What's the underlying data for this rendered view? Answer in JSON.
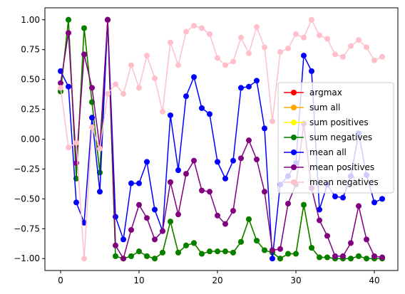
{
  "chart_data": {
    "type": "line",
    "title": "",
    "xlabel": "",
    "ylabel": "",
    "xlim": [
      -2,
      43
    ],
    "ylim": [
      -1.1,
      1.1
    ],
    "xticks": [
      0,
      10,
      20,
      30,
      40
    ],
    "yticks": [
      -1.0,
      -0.75,
      -0.5,
      -0.25,
      0.0,
      0.25,
      0.5,
      0.75,
      1.0
    ],
    "xtick_labels": [
      "0",
      "10",
      "20",
      "30",
      "40"
    ],
    "ytick_labels": [
      "−1.00",
      "−0.75",
      "−0.50",
      "−0.25",
      "0.00",
      "0.25",
      "0.50",
      "0.75",
      "1.00"
    ],
    "grid": false,
    "legend_position": "center-right",
    "x": [
      0,
      1,
      2,
      3,
      4,
      5,
      6,
      7,
      8,
      9,
      10,
      11,
      12,
      13,
      14,
      15,
      16,
      17,
      18,
      19,
      20,
      21,
      22,
      23,
      24,
      25,
      26,
      27,
      28,
      29,
      30,
      31,
      32,
      33,
      34,
      35,
      36,
      37,
      38,
      39,
      40,
      41
    ],
    "series": [
      {
        "name": "argmax",
        "color": "#ff0000",
        "values": [
          0.4,
          1.0,
          -0.33,
          0.93,
          0.31,
          -0.28,
          1.0,
          -0.98,
          -1.0,
          -0.98,
          -0.94,
          -0.98,
          -1.0,
          -0.95,
          -0.69,
          -0.95,
          -0.89,
          -0.87,
          -0.96,
          -0.94,
          -0.94,
          -0.94,
          -0.95,
          -0.86,
          -0.67,
          -0.85,
          -0.93,
          -0.95,
          -1.0,
          -0.96,
          -0.96,
          -0.55,
          -0.91,
          -0.99,
          -0.99,
          -1.0,
          -1.0,
          -1.0,
          -0.98,
          -1.0,
          -1.0,
          -1.0
        ]
      },
      {
        "name": "sum all",
        "color": "#ffa500",
        "values": [
          0.4,
          1.0,
          -0.33,
          0.93,
          0.31,
          -0.28,
          1.0,
          -0.98,
          -1.0,
          -0.98,
          -0.94,
          -0.98,
          -1.0,
          -0.95,
          -0.69,
          -0.95,
          -0.89,
          -0.87,
          -0.96,
          -0.94,
          -0.94,
          -0.94,
          -0.95,
          -0.86,
          -0.67,
          -0.85,
          -0.93,
          -0.95,
          -1.0,
          -0.96,
          -0.96,
          -0.55,
          -0.91,
          -0.99,
          -0.99,
          -1.0,
          -1.0,
          -1.0,
          -0.98,
          -1.0,
          -1.0,
          -1.0
        ]
      },
      {
        "name": "sum positives",
        "color": "#ffff00",
        "values": [
          0.4,
          1.0,
          -0.33,
          0.93,
          0.31,
          -0.28,
          1.0,
          -0.98,
          -1.0,
          -0.98,
          -0.94,
          -0.98,
          -1.0,
          -0.95,
          -0.69,
          -0.95,
          -0.89,
          -0.87,
          -0.96,
          -0.94,
          -0.94,
          -0.94,
          -0.95,
          -0.86,
          -0.67,
          -0.85,
          -0.93,
          -0.95,
          -1.0,
          -0.96,
          -0.96,
          -0.55,
          -0.91,
          -0.99,
          -0.99,
          -1.0,
          -1.0,
          -1.0,
          -0.98,
          -1.0,
          -1.0,
          -1.0
        ]
      },
      {
        "name": "sum negatives",
        "color": "#008000",
        "values": [
          0.4,
          1.0,
          -0.33,
          0.93,
          0.31,
          -0.28,
          1.0,
          -0.98,
          -1.0,
          -0.98,
          -0.94,
          -0.98,
          -1.0,
          -0.95,
          -0.69,
          -0.95,
          -0.89,
          -0.87,
          -0.96,
          -0.94,
          -0.94,
          -0.94,
          -0.95,
          -0.86,
          -0.67,
          -0.85,
          -0.93,
          -0.95,
          -1.0,
          -0.96,
          -0.96,
          -0.55,
          -0.91,
          -0.99,
          -0.99,
          -1.0,
          -1.0,
          -1.0,
          -0.98,
          -1.0,
          -1.0,
          -1.0
        ]
      },
      {
        "name": "mean all",
        "color": "#0000ff",
        "values": [
          0.57,
          0.44,
          -0.53,
          -0.7,
          0.18,
          -0.44,
          1.0,
          -0.65,
          -0.84,
          -0.37,
          -0.37,
          -0.19,
          -0.59,
          -0.77,
          0.2,
          -0.26,
          0.36,
          0.52,
          0.26,
          0.21,
          -0.19,
          -0.33,
          -0.18,
          0.43,
          0.44,
          0.49,
          0.09,
          -1.0,
          -0.38,
          -0.31,
          -0.2,
          0.7,
          0.57,
          -0.59,
          -0.38,
          -0.48,
          -0.49,
          -0.31,
          0.05,
          -0.3,
          -0.53,
          -0.5
        ]
      },
      {
        "name": "mean positives",
        "color": "#800080",
        "values": [
          0.47,
          0.89,
          -0.2,
          0.71,
          0.43,
          -0.07,
          1.0,
          -0.89,
          -1.0,
          -0.76,
          -0.55,
          -0.66,
          -0.84,
          -0.77,
          -0.36,
          -0.63,
          -0.29,
          -0.18,
          -0.43,
          -0.44,
          -0.64,
          -0.71,
          -0.6,
          -0.16,
          -0.01,
          -0.17,
          -0.44,
          -0.93,
          -0.92,
          -0.54,
          -0.38,
          0.13,
          -0.41,
          -0.68,
          -0.81,
          -0.98,
          -0.98,
          -0.87,
          -0.56,
          -0.84,
          -0.98,
          -0.99
        ]
      },
      {
        "name": "mean negatives",
        "color": "#ffc0cb",
        "values": [
          0.43,
          -0.07,
          -0.03,
          -1.0,
          0.1,
          -0.08,
          0.38,
          0.46,
          0.38,
          0.62,
          0.43,
          0.7,
          0.51,
          0.23,
          0.81,
          0.62,
          0.9,
          0.95,
          0.93,
          0.88,
          0.68,
          0.62,
          0.65,
          0.85,
          0.72,
          0.94,
          0.77,
          0.15,
          0.73,
          0.76,
          0.88,
          0.85,
          1.0,
          0.87,
          0.84,
          0.71,
          0.69,
          0.78,
          0.83,
          0.77,
          0.66,
          0.69
        ]
      }
    ]
  }
}
